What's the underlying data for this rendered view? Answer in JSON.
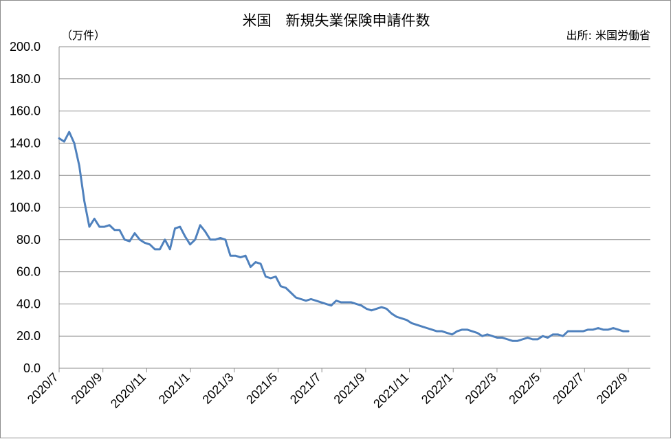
{
  "chart_data": {
    "type": "line",
    "title": "米国　新規失業保険申請件数",
    "unit_label": "（万件）",
    "source_label": "出所: 米国労働省",
    "ylim": [
      0,
      200
    ],
    "yticks": [
      "0.0",
      "20.0",
      "40.0",
      "60.0",
      "80.0",
      "100.0",
      "120.0",
      "140.0",
      "160.0",
      "180.0",
      "200.0"
    ],
    "xticks": [
      "2020/7",
      "2020/9",
      "2020/11",
      "2021/1",
      "2021/3",
      "2021/5",
      "2021/7",
      "2021/9",
      "2021/11",
      "2022/1",
      "2022/3",
      "2022/5",
      "2022/7",
      "2022/9"
    ],
    "grid": true,
    "line_color": "#4f81bd",
    "series": [
      {
        "values": [
          143,
          141,
          147,
          140,
          126,
          104,
          88,
          93,
          88,
          88,
          89,
          86,
          86,
          80,
          79,
          84,
          80,
          78,
          77,
          74,
          74,
          80,
          74,
          87,
          88,
          82,
          77,
          80,
          89,
          85,
          80,
          80,
          81,
          80,
          70,
          70,
          69,
          70,
          63,
          66,
          65,
          57,
          56,
          57,
          51,
          50,
          47,
          44,
          43,
          42,
          43,
          42,
          41,
          40,
          39,
          42,
          41,
          41,
          41,
          40,
          39,
          37,
          36,
          37,
          38,
          37,
          34,
          32,
          31,
          30,
          28,
          27,
          26,
          25,
          24,
          23,
          23,
          22,
          21,
          23,
          24,
          24,
          23,
          22,
          20,
          21,
          20,
          19,
          19,
          18,
          17,
          17,
          18,
          19,
          18,
          18,
          20,
          19,
          21,
          21,
          20,
          23,
          23,
          23,
          23,
          24,
          24,
          25,
          24,
          24,
          25,
          24,
          23,
          23
        ]
      }
    ]
  }
}
